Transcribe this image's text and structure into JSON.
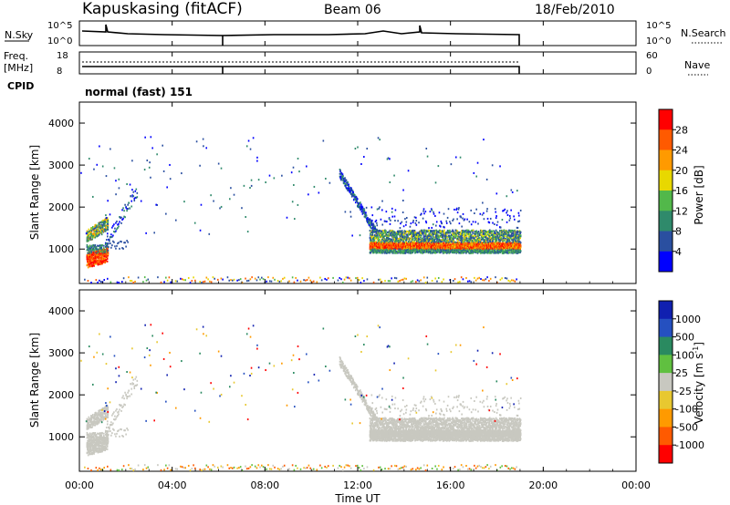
{
  "header": {
    "station": "Kapuskasing (fitACF)",
    "beam": "Beam 06",
    "date": "18/Feb/2010"
  },
  "summary_panels": {
    "nsky_label": "N.Sky",
    "nsky_ticks": [
      "10^5",
      "10^0"
    ],
    "nsearch_label": "N.Search",
    "nsearch_ticks": [
      "10^5",
      "10^0"
    ],
    "freq_label": "Freq.",
    "freq_unit": "[MHz]",
    "freq_ticks": [
      "18",
      "8"
    ],
    "nave_label": "Nave",
    "nave_ticks": [
      "60",
      "0"
    ],
    "cpid_label": "CPID",
    "cpid_value": "normal (fast) 151"
  },
  "colors": {
    "power_scale": [
      "#0000ff",
      "#2a4fa0",
      "#2f8a6b",
      "#52b84a",
      "#e8d800",
      "#ff9a00",
      "#ff5a00",
      "#ff0000"
    ],
    "velocity_scale": [
      "#1020b0",
      "#2550c0",
      "#2a8a60",
      "#60c040",
      "#c8c8c0",
      "#e8c830",
      "#ff9a00",
      "#ff5a00",
      "#ff0000"
    ]
  },
  "chart_data": [
    {
      "type": "heatmap",
      "panel": "power",
      "ylabel": "Slant Range [km]",
      "yticks": [
        "1000",
        "2000",
        "3000",
        "4000"
      ],
      "ylim": [
        180,
        4500
      ],
      "xlim": [
        0,
        24
      ],
      "colorbar_label": "Power [dB]",
      "colorbar_ticks": [
        "4",
        "8",
        "12",
        "16",
        "20",
        "24",
        "28"
      ],
      "features": [
        {
          "x_start": 0.3,
          "x_end": 1.1,
          "y_center": 700,
          "level": "high"
        },
        {
          "x_start": 0.3,
          "x_end": 1.3,
          "y_center": 1400,
          "level": "mid"
        },
        {
          "x_start": 12.7,
          "x_end": 19.0,
          "y_center": 1100,
          "level": "high"
        },
        {
          "x_start": 12.5,
          "x_end": 19.0,
          "y_center": 1350,
          "level": "low"
        }
      ]
    },
    {
      "type": "heatmap",
      "panel": "velocity",
      "ylabel": "Slant Range [km]",
      "yticks": [
        "1000",
        "2000",
        "3000",
        "4000"
      ],
      "ylim": [
        180,
        4500
      ],
      "xlim": [
        0,
        24
      ],
      "colorbar_label": "Velocity [m s^-1]",
      "colorbar_ticks": [
        "1000",
        "500",
        "100",
        "25",
        "-25",
        "-100",
        "-500",
        "-1000"
      ],
      "features": [
        {
          "x_start": 0.3,
          "x_end": 2.0,
          "y_center": 1000,
          "level": "ground scatter"
        },
        {
          "x_start": 12.5,
          "x_end": 19.0,
          "y_center": 1150,
          "level": "ground scatter"
        }
      ]
    }
  ],
  "xaxis": {
    "label": "Time UT",
    "ticks": [
      "00:00",
      "04:00",
      "08:00",
      "12:00",
      "16:00",
      "20:00",
      "00:00"
    ]
  }
}
